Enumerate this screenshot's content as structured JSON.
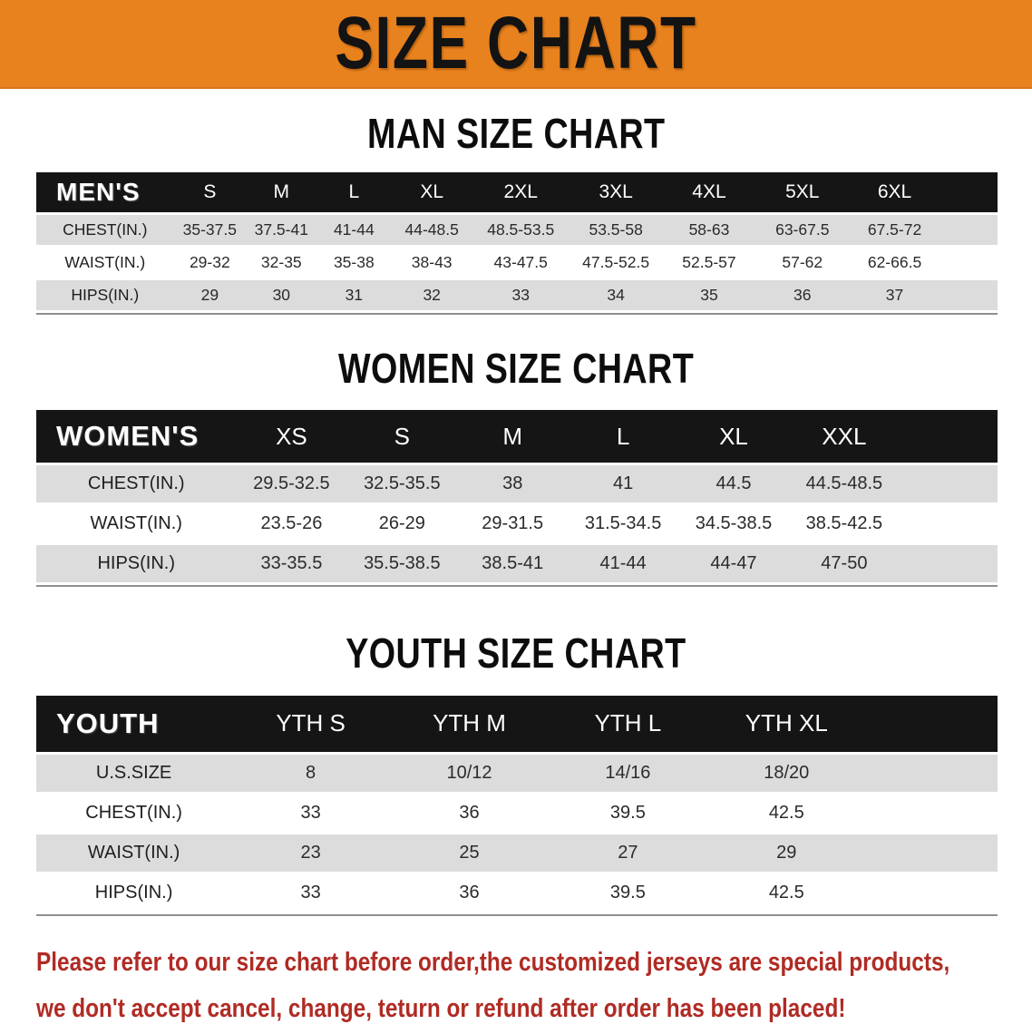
{
  "banner": {
    "title": "SIZE CHART",
    "bg_color": "#E8821E",
    "text_color": "#131313"
  },
  "colors": {
    "table_header_bg": "#151515",
    "table_header_text": "#FFFFFF",
    "row_stripe": "#DCDCDC",
    "row_plain": "#FFFFFF",
    "note_text": "#B02B24"
  },
  "sections": [
    {
      "title": "MAN SIZE CHART",
      "header_label": "MEN'S",
      "sizes": [
        "S",
        "M",
        "L",
        "XL",
        "2XL",
        "3XL",
        "4XL",
        "5XL",
        "6XL"
      ],
      "rows": [
        {
          "label": "CHEST(IN.)",
          "values": [
            "35-37.5",
            "37.5-41",
            "41-44",
            "44-48.5",
            "48.5-53.5",
            "53.5-58",
            "58-63",
            "63-67.5",
            "67.5-72"
          ]
        },
        {
          "label": "WAIST(IN.)",
          "values": [
            "29-32",
            "32-35",
            "35-38",
            "38-43",
            "43-47.5",
            "47.5-52.5",
            "52.5-57",
            "57-62",
            "62-66.5"
          ]
        },
        {
          "label": "HIPS(IN.)",
          "values": [
            "29",
            "30",
            "31",
            "32",
            "33",
            "34",
            "35",
            "36",
            "37"
          ]
        }
      ]
    },
    {
      "title": "WOMEN SIZE CHART",
      "header_label": "WOMEN'S",
      "sizes": [
        "XS",
        "S",
        "M",
        "L",
        "XL",
        "XXL"
      ],
      "rows": [
        {
          "label": "CHEST(IN.)",
          "values": [
            "29.5-32.5",
            "32.5-35.5",
            "38",
            "41",
            "44.5",
            "44.5-48.5"
          ]
        },
        {
          "label": "WAIST(IN.)",
          "values": [
            "23.5-26",
            "26-29",
            "29-31.5",
            "31.5-34.5",
            "34.5-38.5",
            "38.5-42.5"
          ]
        },
        {
          "label": "HIPS(IN.)",
          "values": [
            "33-35.5",
            "35.5-38.5",
            "38.5-41",
            "41-44",
            "44-47",
            "47-50"
          ]
        }
      ]
    },
    {
      "title": "YOUTH SIZE CHART",
      "header_label": "YOUTH",
      "sizes": [
        "YTH S",
        "YTH M",
        "YTH L",
        "YTH XL"
      ],
      "rows": [
        {
          "label": "U.S.SIZE",
          "values": [
            "8",
            "10/12",
            "14/16",
            "18/20"
          ]
        },
        {
          "label": "CHEST(IN.)",
          "values": [
            "33",
            "36",
            "39.5",
            "42.5"
          ]
        },
        {
          "label": "WAIST(IN.)",
          "values": [
            "23",
            "25",
            "27",
            "29"
          ]
        },
        {
          "label": "HIPS(IN.)",
          "values": [
            "33",
            "36",
            "39.5",
            "42.5"
          ]
        }
      ]
    }
  ],
  "footer": {
    "line1": "Please refer to our size chart before order,the customized jerseys are special products,",
    "line2": "we don't accept cancel, change, teturn or refund after order has been placed!"
  }
}
